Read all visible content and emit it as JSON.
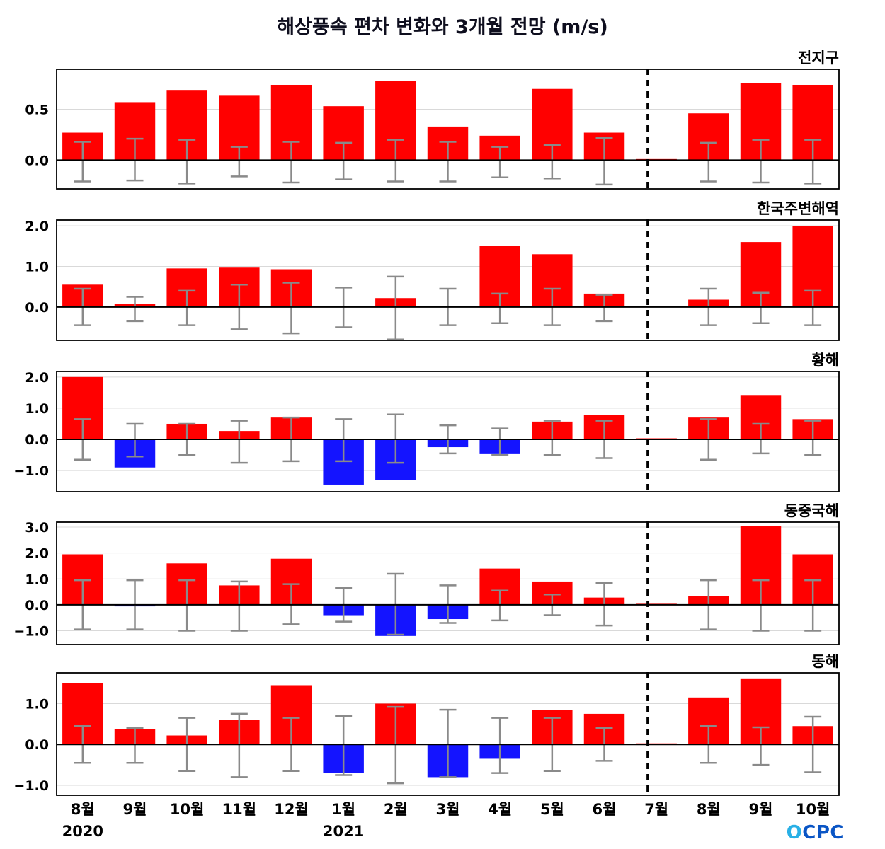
{
  "title": "해상풍속 편차 변화와 3개월 전망 (m/s)",
  "logo": {
    "first": "O",
    "rest": "CPC"
  },
  "colors": {
    "positive": "#ff0000",
    "negative": "#1414ff",
    "error": "#8a8a8a",
    "grid": "#d9d9d9",
    "axis": "#000000"
  },
  "x_labels": [
    "8월",
    "9월",
    "10월",
    "11월",
    "12월",
    "1월",
    "2월",
    "3월",
    "4월",
    "5월",
    "6월",
    "7월",
    "8월",
    "9월",
    "10월"
  ],
  "year_labels": [
    {
      "text": "2020",
      "slot": 0
    },
    {
      "text": "2021",
      "slot": 5
    }
  ],
  "forecast_divider_slot": 11.33,
  "chart_data": [
    {
      "type": "bar",
      "title": "전지구",
      "ylim": [
        -0.29,
        0.9
      ],
      "yticks": [
        {
          "value": 0.5,
          "label": "0.5"
        },
        {
          "value": 0.0,
          "label": "0.0"
        }
      ],
      "values": [
        0.27,
        0.57,
        0.69,
        0.64,
        0.74,
        0.53,
        0.78,
        0.33,
        0.24,
        0.7,
        0.27,
        0.0,
        0.46,
        0.76,
        0.74
      ],
      "error_upper": [
        0.18,
        0.21,
        0.2,
        0.13,
        0.18,
        0.17,
        0.2,
        0.18,
        0.13,
        0.15,
        0.22,
        null,
        0.17,
        0.2,
        0.2
      ],
      "error_lower": [
        -0.21,
        -0.2,
        -0.23,
        -0.16,
        -0.22,
        -0.19,
        -0.21,
        -0.21,
        -0.17,
        -0.18,
        -0.24,
        null,
        -0.21,
        -0.22,
        -0.23
      ]
    },
    {
      "type": "bar",
      "title": "한국주변해역",
      "ylim": [
        -0.84,
        2.16
      ],
      "yticks": [
        {
          "value": 2.0,
          "label": "2.0"
        },
        {
          "value": 1.0,
          "label": "1.0"
        },
        {
          "value": 0.0,
          "label": "0.0"
        }
      ],
      "values": [
        0.55,
        0.08,
        0.95,
        0.97,
        0.93,
        0.02,
        0.22,
        0.02,
        1.5,
        1.3,
        0.33,
        0.0,
        0.18,
        1.6,
        2.0
      ],
      "error_upper": [
        0.45,
        0.25,
        0.4,
        0.55,
        0.6,
        0.48,
        0.75,
        0.45,
        0.33,
        0.45,
        0.3,
        null,
        0.45,
        0.35,
        0.4
      ],
      "error_lower": [
        -0.45,
        -0.35,
        -0.45,
        -0.55,
        -0.65,
        -0.5,
        -0.8,
        -0.45,
        -0.4,
        -0.45,
        -0.35,
        null,
        -0.45,
        -0.4,
        -0.45
      ]
    },
    {
      "type": "bar",
      "title": "황해",
      "ylim": [
        -1.7,
        2.2
      ],
      "yticks": [
        {
          "value": 2.0,
          "label": "2.0"
        },
        {
          "value": 1.0,
          "label": "1.0"
        },
        {
          "value": 0.0,
          "label": "0.0"
        },
        {
          "value": -1.0,
          "label": "−1.0"
        }
      ],
      "values": [
        2.0,
        -0.9,
        0.5,
        0.27,
        0.7,
        -1.45,
        -1.3,
        -0.25,
        -0.45,
        0.57,
        0.78,
        0.0,
        0.7,
        1.4,
        0.65
      ],
      "error_upper": [
        0.65,
        0.5,
        0.5,
        0.6,
        0.7,
        0.65,
        0.8,
        0.45,
        0.35,
        0.6,
        0.6,
        null,
        0.65,
        0.5,
        0.6
      ],
      "error_lower": [
        -0.65,
        -0.55,
        -0.5,
        -0.75,
        -0.7,
        -0.7,
        -0.75,
        -0.45,
        -0.5,
        -0.5,
        -0.6,
        null,
        -0.65,
        -0.45,
        -0.5
      ]
    },
    {
      "type": "bar",
      "title": "동중국해",
      "ylim": [
        -1.56,
        3.22
      ],
      "yticks": [
        {
          "value": 3.0,
          "label": "3.0"
        },
        {
          "value": 2.0,
          "label": "2.0"
        },
        {
          "value": 1.0,
          "label": "1.0"
        },
        {
          "value": 0.0,
          "label": "0.0"
        },
        {
          "value": -1.0,
          "label": "−1.0"
        }
      ],
      "values": [
        1.95,
        -0.06,
        1.6,
        0.75,
        1.78,
        -0.4,
        -1.2,
        -0.55,
        1.4,
        0.9,
        0.28,
        0.0,
        0.35,
        3.05,
        1.95
      ],
      "error_upper": [
        0.95,
        0.95,
        0.95,
        0.9,
        0.8,
        0.65,
        1.2,
        0.75,
        0.55,
        0.4,
        0.85,
        null,
        0.95,
        0.95,
        0.95
      ],
      "error_lower": [
        -0.95,
        -0.95,
        -1.0,
        -1.0,
        -0.75,
        -0.65,
        -1.15,
        -0.7,
        -0.6,
        -0.4,
        -0.8,
        null,
        -0.95,
        -1.0,
        -1.0
      ]
    },
    {
      "type": "bar",
      "title": "동해",
      "ylim": [
        -1.26,
        1.77
      ],
      "yticks": [
        {
          "value": 1.0,
          "label": "1.0"
        },
        {
          "value": 0.0,
          "label": "0.0"
        },
        {
          "value": -1.0,
          "label": "−1.0"
        }
      ],
      "values": [
        1.5,
        0.37,
        0.22,
        0.6,
        1.45,
        -0.7,
        1.0,
        -0.8,
        -0.35,
        0.85,
        0.75,
        0.0,
        1.15,
        1.6,
        0.45
      ],
      "error_upper": [
        0.45,
        0.4,
        0.65,
        0.75,
        0.65,
        0.7,
        0.92,
        0.85,
        0.65,
        0.65,
        0.4,
        null,
        0.45,
        0.42,
        0.68
      ],
      "error_lower": [
        -0.45,
        -0.45,
        -0.65,
        -0.8,
        -0.65,
        -0.75,
        -0.95,
        -0.8,
        -0.7,
        -0.65,
        -0.4,
        null,
        -0.45,
        -0.5,
        -0.68
      ]
    }
  ]
}
